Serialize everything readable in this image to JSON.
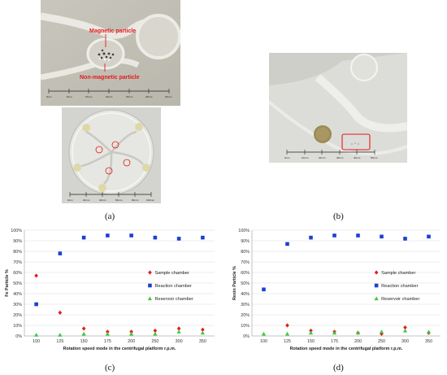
{
  "captions": {
    "a": "(a)",
    "b": "(b)",
    "c": "(c)",
    "d": "(d)"
  },
  "photo_a_top": {
    "annotations": [
      "Magnetic particle",
      "Non-magnetic particle"
    ],
    "scale_labels": [
      "0mm",
      "5mm",
      "10mm",
      "15mm",
      "20mm",
      "25mm",
      "30mm"
    ]
  },
  "photo_a_bottom": {
    "scale_labels": [
      "0mm",
      "20mm",
      "40mm",
      "60mm",
      "80mm",
      "100mm"
    ]
  },
  "photo_b": {
    "scale_labels": [
      "0mm",
      "10mm",
      "20mm",
      "30mm",
      "40mm",
      "50mm"
    ]
  },
  "colors": {
    "sample": "#e41a1c",
    "reaction": "#1f3fcf",
    "reservoir": "#3ec93e",
    "annotation": "#e41a1c"
  },
  "chart_data": [
    {
      "type": "scatter",
      "title": "",
      "xlabel": "Rotation speed mode in the centrifugal platform r.p.m.",
      "ylabel": "Fe Particle %",
      "categories": [
        "100",
        "125",
        "150",
        "175",
        "200",
        "250",
        "300",
        "350"
      ],
      "yticks": [
        "0%",
        "10%",
        "20%",
        "30%",
        "40%",
        "50%",
        "60%",
        "70%",
        "80%",
        "90%",
        "100%"
      ],
      "ylim": [
        0,
        100
      ],
      "grid": true,
      "legend_position": "right",
      "series": [
        {
          "name": "Sample chamber",
          "marker": "diamond",
          "values": [
            57,
            22,
            7,
            4,
            4,
            5,
            7,
            6
          ]
        },
        {
          "name": "Reaction chamber",
          "marker": "square",
          "values": [
            30,
            78,
            93,
            95,
            95,
            93,
            92,
            93
          ]
        },
        {
          "name": "Reservoir chamber",
          "marker": "triangle",
          "values": [
            1,
            1,
            2,
            2,
            2,
            2,
            4,
            3
          ]
        }
      ]
    },
    {
      "type": "scatter",
      "title": "",
      "xlabel": "Rotation speed mode in the centrifugal platform r.p.m.",
      "ylabel": "Resin Particle %",
      "categories": [
        "100",
        "125",
        "150",
        "175",
        "200",
        "250",
        "300",
        "350"
      ],
      "yticks": [
        "0%",
        "10%",
        "20%",
        "30%",
        "40%",
        "50%",
        "60%",
        "70%",
        "80%",
        "90%",
        "100%"
      ],
      "ylim": [
        0,
        100
      ],
      "grid": true,
      "legend_position": "right",
      "series": [
        {
          "name": "Sample chamber",
          "marker": "diamond",
          "values": [
            44,
            10,
            5,
            4,
            3,
            2,
            8,
            3
          ]
        },
        {
          "name": "Reaction chamber",
          "marker": "square",
          "values": [
            44,
            87,
            93,
            95,
            95,
            94,
            92,
            94
          ]
        },
        {
          "name": "Reservoir chamber",
          "marker": "triangle",
          "values": [
            2,
            2,
            3,
            3,
            3,
            4,
            5,
            4
          ]
        }
      ]
    }
  ]
}
